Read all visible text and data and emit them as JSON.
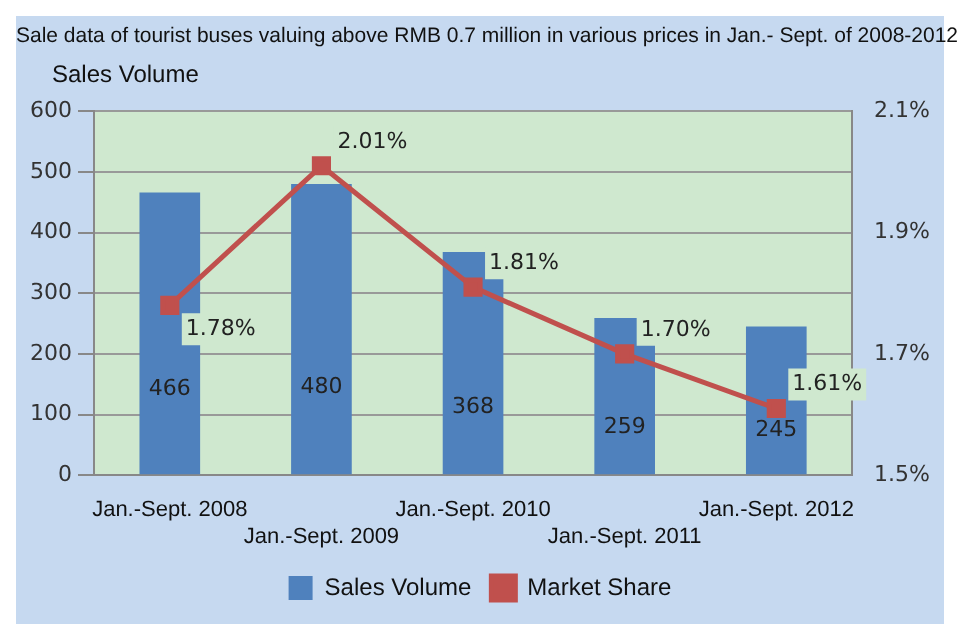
{
  "chart_data": {
    "type": "bar",
    "title": "Sale data of tourist buses valuing above RMB 0.7 million in various prices in Jan.- Sept. of 2008-2012",
    "ylabel": "Sales Volume",
    "categories": [
      "Jan.-Sept. 2008",
      "Jan.-Sept. 2009",
      "Jan.-Sept. 2010",
      "Jan.-Sept. 2011",
      "Jan.-Sept. 2012"
    ],
    "series": [
      {
        "name": "Sales Volume",
        "color": "#4f81bd",
        "values": [
          466,
          480,
          368,
          259,
          245
        ],
        "value_labels": [
          "466",
          "480",
          "368",
          "259",
          "245"
        ]
      },
      {
        "name": "Market Share",
        "type": "line",
        "axis": "y2",
        "color": "#c0504d",
        "marker": "square",
        "values": [
          1.78,
          2.01,
          1.81,
          1.7,
          1.61
        ],
        "value_labels": [
          "1.78%",
          "2.01%",
          "1.81%",
          "1.70%",
          "1.61%"
        ]
      }
    ],
    "ylim": [
      0,
      600
    ],
    "yticks": [
      0,
      100,
      200,
      300,
      400,
      500,
      600
    ],
    "y2lim": [
      1.5,
      2.1
    ],
    "y2ticks": [
      {
        "value": 1.5,
        "label": "1.5%"
      },
      {
        "value": 1.7,
        "label": "1.7%"
      },
      {
        "value": 1.9,
        "label": "1.9%"
      },
      {
        "value": 2.1,
        "label": "2.1%"
      }
    ],
    "grid": "y",
    "legend": "bottom"
  }
}
